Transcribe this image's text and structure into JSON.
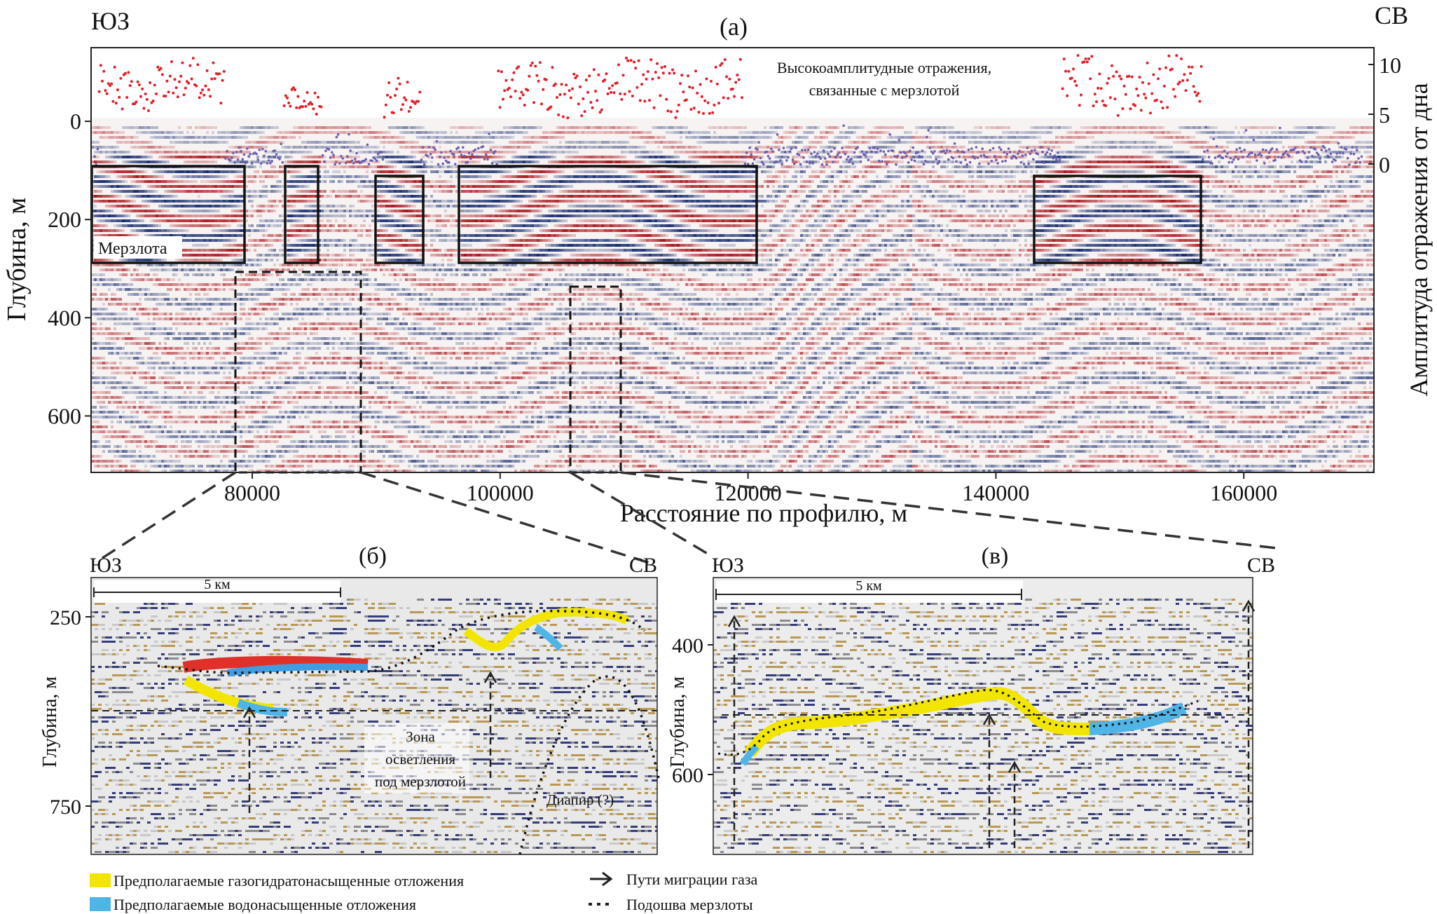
{
  "panel_a": {
    "label": "(a)",
    "left_dir": "ЮЗ",
    "right_dir": "СВ",
    "y_axis_label": "Глубина, м",
    "y_ticks": [
      "0",
      "200",
      "400",
      "600"
    ],
    "y_tick_values": [
      0,
      200,
      400,
      600
    ],
    "x_axis_label": "Расстояние по профилю, м",
    "x_ticks": [
      "80000",
      "100000",
      "120000",
      "140000",
      "160000"
    ],
    "x_tick_values": [
      80000,
      100000,
      120000,
      140000,
      160000
    ],
    "x_range": [
      67000,
      170500
    ],
    "y_range": [
      -150,
      715
    ],
    "right_axis_label": "Амплитуда отражения от дна",
    "right_ticks": [
      "0",
      "5",
      "10"
    ],
    "annotation_permafrost_reflections": [
      "Высокоамплитудные отражения,",
      "связанные с мерзлотой"
    ],
    "box_label": "Мерзлота"
  },
  "panel_b": {
    "label": "(б)",
    "left_dir": "ЮЗ",
    "right_dir": "СВ",
    "y_axis_label": "Глубина, м",
    "y_ticks": [
      "250",
      "750"
    ],
    "scale_bar": "5 км",
    "zone_label": [
      "Зона",
      "осветления",
      "под мерзлотой"
    ],
    "diapir_label": "Диапир (?)"
  },
  "panel_c": {
    "label": "(в)",
    "left_dir": "ЮЗ",
    "right_dir": "СВ",
    "y_axis_label": "Глубина, м",
    "y_ticks": [
      "400",
      "600"
    ],
    "scale_bar": "5 км"
  },
  "legend": {
    "hydrate": "Предполагаемые газогидратонасыщенные отложения",
    "water": "Предполагаемые водонасыщенные отложения",
    "gas_paths": "Пути миграции газа",
    "permafrost_base": "Подошва мерзлоты"
  },
  "colors": {
    "hydrate": "#f2e600",
    "water": "#4fb4e6",
    "high_amp": "#e0202a",
    "low_amp": "#6a5fb0",
    "seismic_red": "#a8141c",
    "seismic_blue": "#142a6e",
    "seismic_tan": "#b08a3a"
  }
}
